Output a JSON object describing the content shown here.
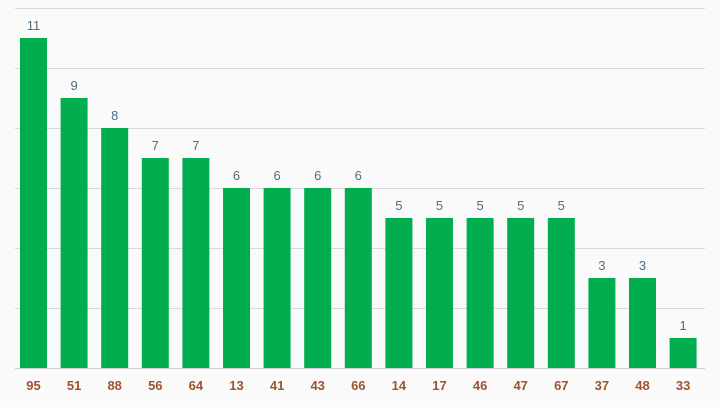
{
  "chart_data": {
    "type": "bar",
    "title": "",
    "xlabel": "",
    "ylabel": "",
    "categories": [
      "95",
      "51",
      "88",
      "56",
      "64",
      "13",
      "41",
      "43",
      "66",
      "14",
      "17",
      "46",
      "47",
      "67",
      "37",
      "48",
      "33"
    ],
    "values": [
      11,
      9,
      8,
      7,
      7,
      6,
      6,
      6,
      6,
      5,
      5,
      5,
      5,
      5,
      3,
      3,
      1
    ],
    "ylim": [
      0,
      12
    ],
    "grid": true,
    "bar_color": "#00ae4f",
    "value_label_color": "#4f6d80",
    "category_label_color": "#a0522d",
    "grid_color": "#d9d9d9"
  }
}
